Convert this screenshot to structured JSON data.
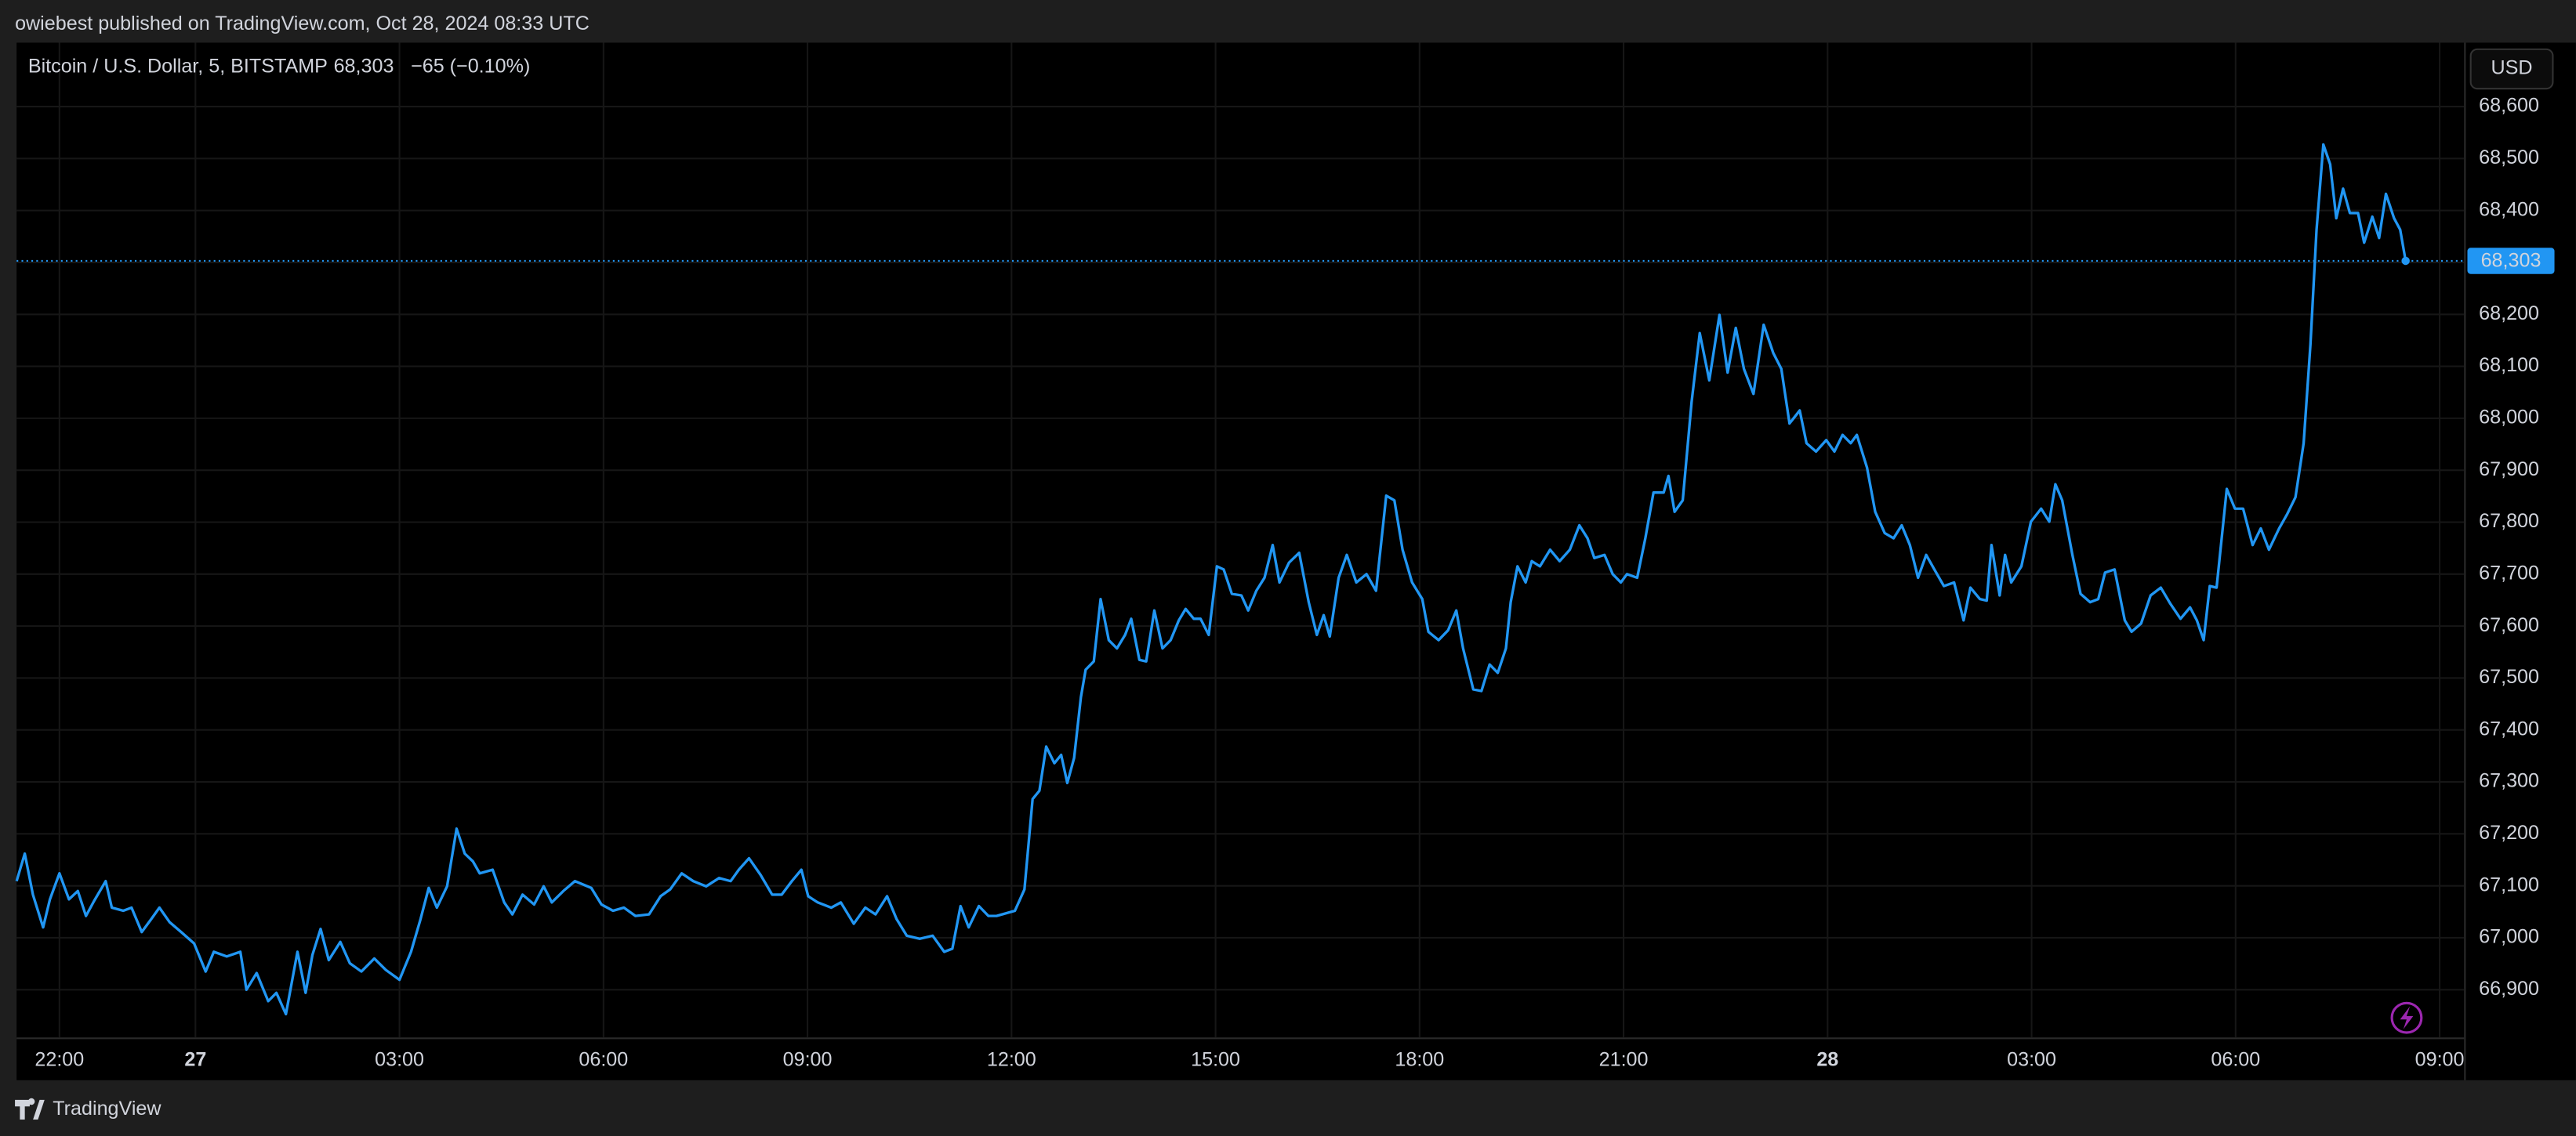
{
  "header": {
    "published": "owiebest published on TradingView.com, Oct 28, 2024 08:33 UTC"
  },
  "chart_data": {
    "type": "line",
    "title": "Bitcoin / U.S. Dollar, 5, BITSTAMP",
    "last_price": {
      "value": 68303,
      "label": "68,303"
    },
    "change": "−65 (−0.10%)",
    "currency": "USD",
    "color": "#2196f3",
    "grid": true,
    "xlim": [
      21.37,
      57.36
    ],
    "xticks": [
      {
        "value": 22,
        "label": "22:00"
      },
      {
        "value": 24,
        "label": "27"
      },
      {
        "value": 27,
        "label": "03:00"
      },
      {
        "value": 30,
        "label": "06:00"
      },
      {
        "value": 33,
        "label": "09:00"
      },
      {
        "value": 36,
        "label": "12:00"
      },
      {
        "value": 39,
        "label": "15:00"
      },
      {
        "value": 42,
        "label": "18:00"
      },
      {
        "value": 45,
        "label": "21:00"
      },
      {
        "value": 48,
        "label": "28"
      },
      {
        "value": 51,
        "label": "03:00"
      },
      {
        "value": 54,
        "label": "06:00"
      },
      {
        "value": 57,
        "label": "09:00"
      }
    ],
    "ylim": [
      66808,
      68723
    ],
    "yticks": [
      {
        "value": 66900,
        "label": "66,900"
      },
      {
        "value": 67000,
        "label": "67,000"
      },
      {
        "value": 67100,
        "label": "67,100"
      },
      {
        "value": 67200,
        "label": "67,200"
      },
      {
        "value": 67300,
        "label": "67,300"
      },
      {
        "value": 67400,
        "label": "67,400"
      },
      {
        "value": 67500,
        "label": "67,500"
      },
      {
        "value": 67600,
        "label": "67,600"
      },
      {
        "value": 67700,
        "label": "67,700"
      },
      {
        "value": 67800,
        "label": "67,800"
      },
      {
        "value": 67900,
        "label": "67,900"
      },
      {
        "value": 68000,
        "label": "68,000"
      },
      {
        "value": 68100,
        "label": "68,100"
      },
      {
        "value": 68200,
        "label": "68,200"
      },
      {
        "value": 68300,
        "label": "68,300"
      },
      {
        "value": 68400,
        "label": "68,400"
      },
      {
        "value": 68500,
        "label": "68,500"
      },
      {
        "value": 68600,
        "label": "68,600"
      }
    ],
    "x": [
      21.37,
      21.49,
      21.61,
      21.76,
      21.86,
      22.0,
      22.14,
      22.27,
      22.39,
      22.51,
      22.68,
      22.77,
      22.94,
      23.06,
      23.21,
      23.35,
      23.47,
      23.62,
      23.79,
      23.98,
      24.15,
      24.27,
      24.46,
      24.66,
      24.75,
      24.9,
      25.07,
      25.19,
      25.33,
      25.5,
      25.62,
      25.72,
      25.84,
      25.96,
      26.13,
      26.27,
      26.44,
      26.63,
      26.8,
      27.0,
      27.17,
      27.31,
      27.43,
      27.55,
      27.7,
      27.84,
      27.96,
      28.08,
      28.18,
      28.37,
      28.54,
      28.66,
      28.81,
      28.98,
      29.12,
      29.24,
      29.41,
      29.58,
      29.82,
      29.97,
      30.14,
      30.3,
      30.47,
      30.67,
      30.84,
      30.98,
      31.15,
      31.32,
      31.51,
      31.7,
      31.87,
      31.99,
      32.14,
      32.31,
      32.48,
      32.62,
      32.77,
      32.91,
      33.01,
      33.15,
      33.35,
      33.49,
      33.68,
      33.85,
      34.0,
      34.17,
      34.31,
      34.46,
      34.65,
      34.84,
      35.01,
      35.13,
      35.25,
      35.37,
      35.52,
      35.66,
      35.78,
      36.05,
      36.19,
      36.31,
      36.41,
      36.51,
      36.63,
      36.73,
      36.82,
      36.92,
      37.02,
      37.09,
      37.21,
      37.31,
      37.43,
      37.55,
      37.67,
      37.76,
      37.88,
      37.98,
      38.1,
      38.22,
      38.34,
      38.46,
      38.56,
      38.68,
      38.78,
      38.9,
      39.02,
      39.12,
      39.24,
      39.38,
      39.48,
      39.6,
      39.72,
      39.84,
      39.94,
      40.08,
      40.23,
      40.37,
      40.49,
      40.59,
      40.68,
      40.81,
      40.93,
      41.07,
      41.22,
      41.36,
      41.51,
      41.63,
      41.75,
      41.89,
      42.04,
      42.13,
      42.28,
      42.42,
      42.54,
      42.64,
      42.79,
      42.91,
      43.03,
      43.15,
      43.27,
      43.34,
      43.44,
      43.56,
      43.65,
      43.77,
      43.92,
      44.06,
      44.21,
      44.35,
      44.47,
      44.57,
      44.72,
      44.84,
      44.96,
      45.05,
      45.2,
      45.32,
      45.44,
      45.59,
      45.66,
      45.75,
      45.87,
      46.0,
      46.12,
      46.26,
      46.41,
      46.53,
      46.65,
      46.77,
      46.91,
      47.06,
      47.2,
      47.32,
      47.44,
      47.59,
      47.69,
      47.83,
      47.98,
      48.1,
      48.22,
      48.34,
      48.43,
      48.58,
      48.7,
      48.84,
      48.97,
      49.09,
      49.21,
      49.33,
      49.45,
      49.57,
      49.71,
      49.86,
      50.0,
      50.1,
      50.24,
      50.34,
      50.41,
      50.53,
      50.61,
      50.7,
      50.85,
      50.99,
      51.14,
      51.26,
      51.35,
      51.45,
      51.6,
      51.72,
      51.86,
      51.98,
      52.08,
      52.22,
      52.37,
      52.47,
      52.61,
      52.75,
      52.9,
      53.04,
      53.19,
      53.33,
      53.43,
      53.53,
      53.62,
      53.72,
      53.87,
      53.99,
      54.11,
      54.25,
      54.37,
      54.49,
      54.64,
      54.76,
      54.88,
      55.0,
      55.1,
      55.19,
      55.29,
      55.39,
      55.48,
      55.58,
      55.68,
      55.8,
      55.89,
      56.01,
      56.11,
      56.21,
      56.33,
      56.42,
      56.5
    ],
    "values": [
      67109,
      67162,
      67083,
      67020,
      67074,
      67124,
      67074,
      67090,
      67042,
      67071,
      67109,
      67058,
      67052,
      67058,
      67011,
      67036,
      67058,
      67030,
      67011,
      66989,
      66935,
      66973,
      66964,
      66973,
      66900,
      66932,
      66878,
      66894,
      66853,
      66973,
      66894,
      66967,
      67017,
      66957,
      66992,
      66951,
      66935,
      66960,
      66938,
      66919,
      66973,
      67036,
      67096,
      67058,
      67099,
      67210,
      67162,
      67147,
      67124,
      67131,
      67068,
      67045,
      67083,
      67064,
      67099,
      67068,
      67090,
      67109,
      67096,
      67064,
      67052,
      67058,
      67042,
      67045,
      67080,
      67093,
      67124,
      67109,
      67099,
      67115,
      67109,
      67131,
      67153,
      67121,
      67083,
      67083,
      67109,
      67131,
      67080,
      67068,
      67058,
      67068,
      67027,
      67058,
      67045,
      67080,
      67036,
      67004,
      66998,
      67004,
      66973,
      66979,
      67061,
      67020,
      67061,
      67042,
      67042,
      67052,
      67093,
      67267,
      67283,
      67368,
      67336,
      67352,
      67298,
      67346,
      67463,
      67516,
      67532,
      67652,
      67573,
      67557,
      67583,
      67614,
      67535,
      67532,
      67630,
      67557,
      67573,
      67611,
      67633,
      67614,
      67614,
      67583,
      67715,
      67709,
      67662,
      67659,
      67630,
      67668,
      67693,
      67756,
      67684,
      67722,
      67741,
      67646,
      67583,
      67621,
      67580,
      67693,
      67737,
      67684,
      67700,
      67668,
      67851,
      67842,
      67747,
      67684,
      67652,
      67589,
      67573,
      67592,
      67630,
      67557,
      67478,
      67475,
      67526,
      67510,
      67557,
      67646,
      67715,
      67684,
      67725,
      67715,
      67747,
      67725,
      67747,
      67794,
      67769,
      67731,
      67737,
      67700,
      67684,
      67700,
      67693,
      67769,
      67857,
      67857,
      67889,
      67820,
      67842,
      68031,
      68164,
      68073,
      68199,
      68088,
      68174,
      68095,
      68047,
      68180,
      68126,
      68095,
      67990,
      68015,
      67952,
      67936,
      67958,
      67936,
      67968,
      67952,
      67968,
      67905,
      67820,
      67779,
      67769,
      67794,
      67756,
      67693,
      67737,
      67709,
      67677,
      67684,
      67611,
      67674,
      67652,
      67649,
      67756,
      67659,
      67737,
      67684,
      67715,
      67801,
      67826,
      67801,
      67873,
      67842,
      67737,
      67662,
      67646,
      67652,
      67703,
      67709,
      67611,
      67589,
      67605,
      67659,
      67674,
      67643,
      67614,
      67636,
      67611,
      67573,
      67677,
      67674,
      67864,
      67826,
      67826,
      67756,
      67788,
      67747,
      67788,
      67816,
      67848,
      67952,
      68142,
      68363,
      68527,
      68489,
      68385,
      68442,
      68395,
      68395,
      68338,
      68388,
      68347,
      68432,
      68385,
      68363,
      68303
    ]
  },
  "footer": {
    "brand": "TradingView"
  }
}
